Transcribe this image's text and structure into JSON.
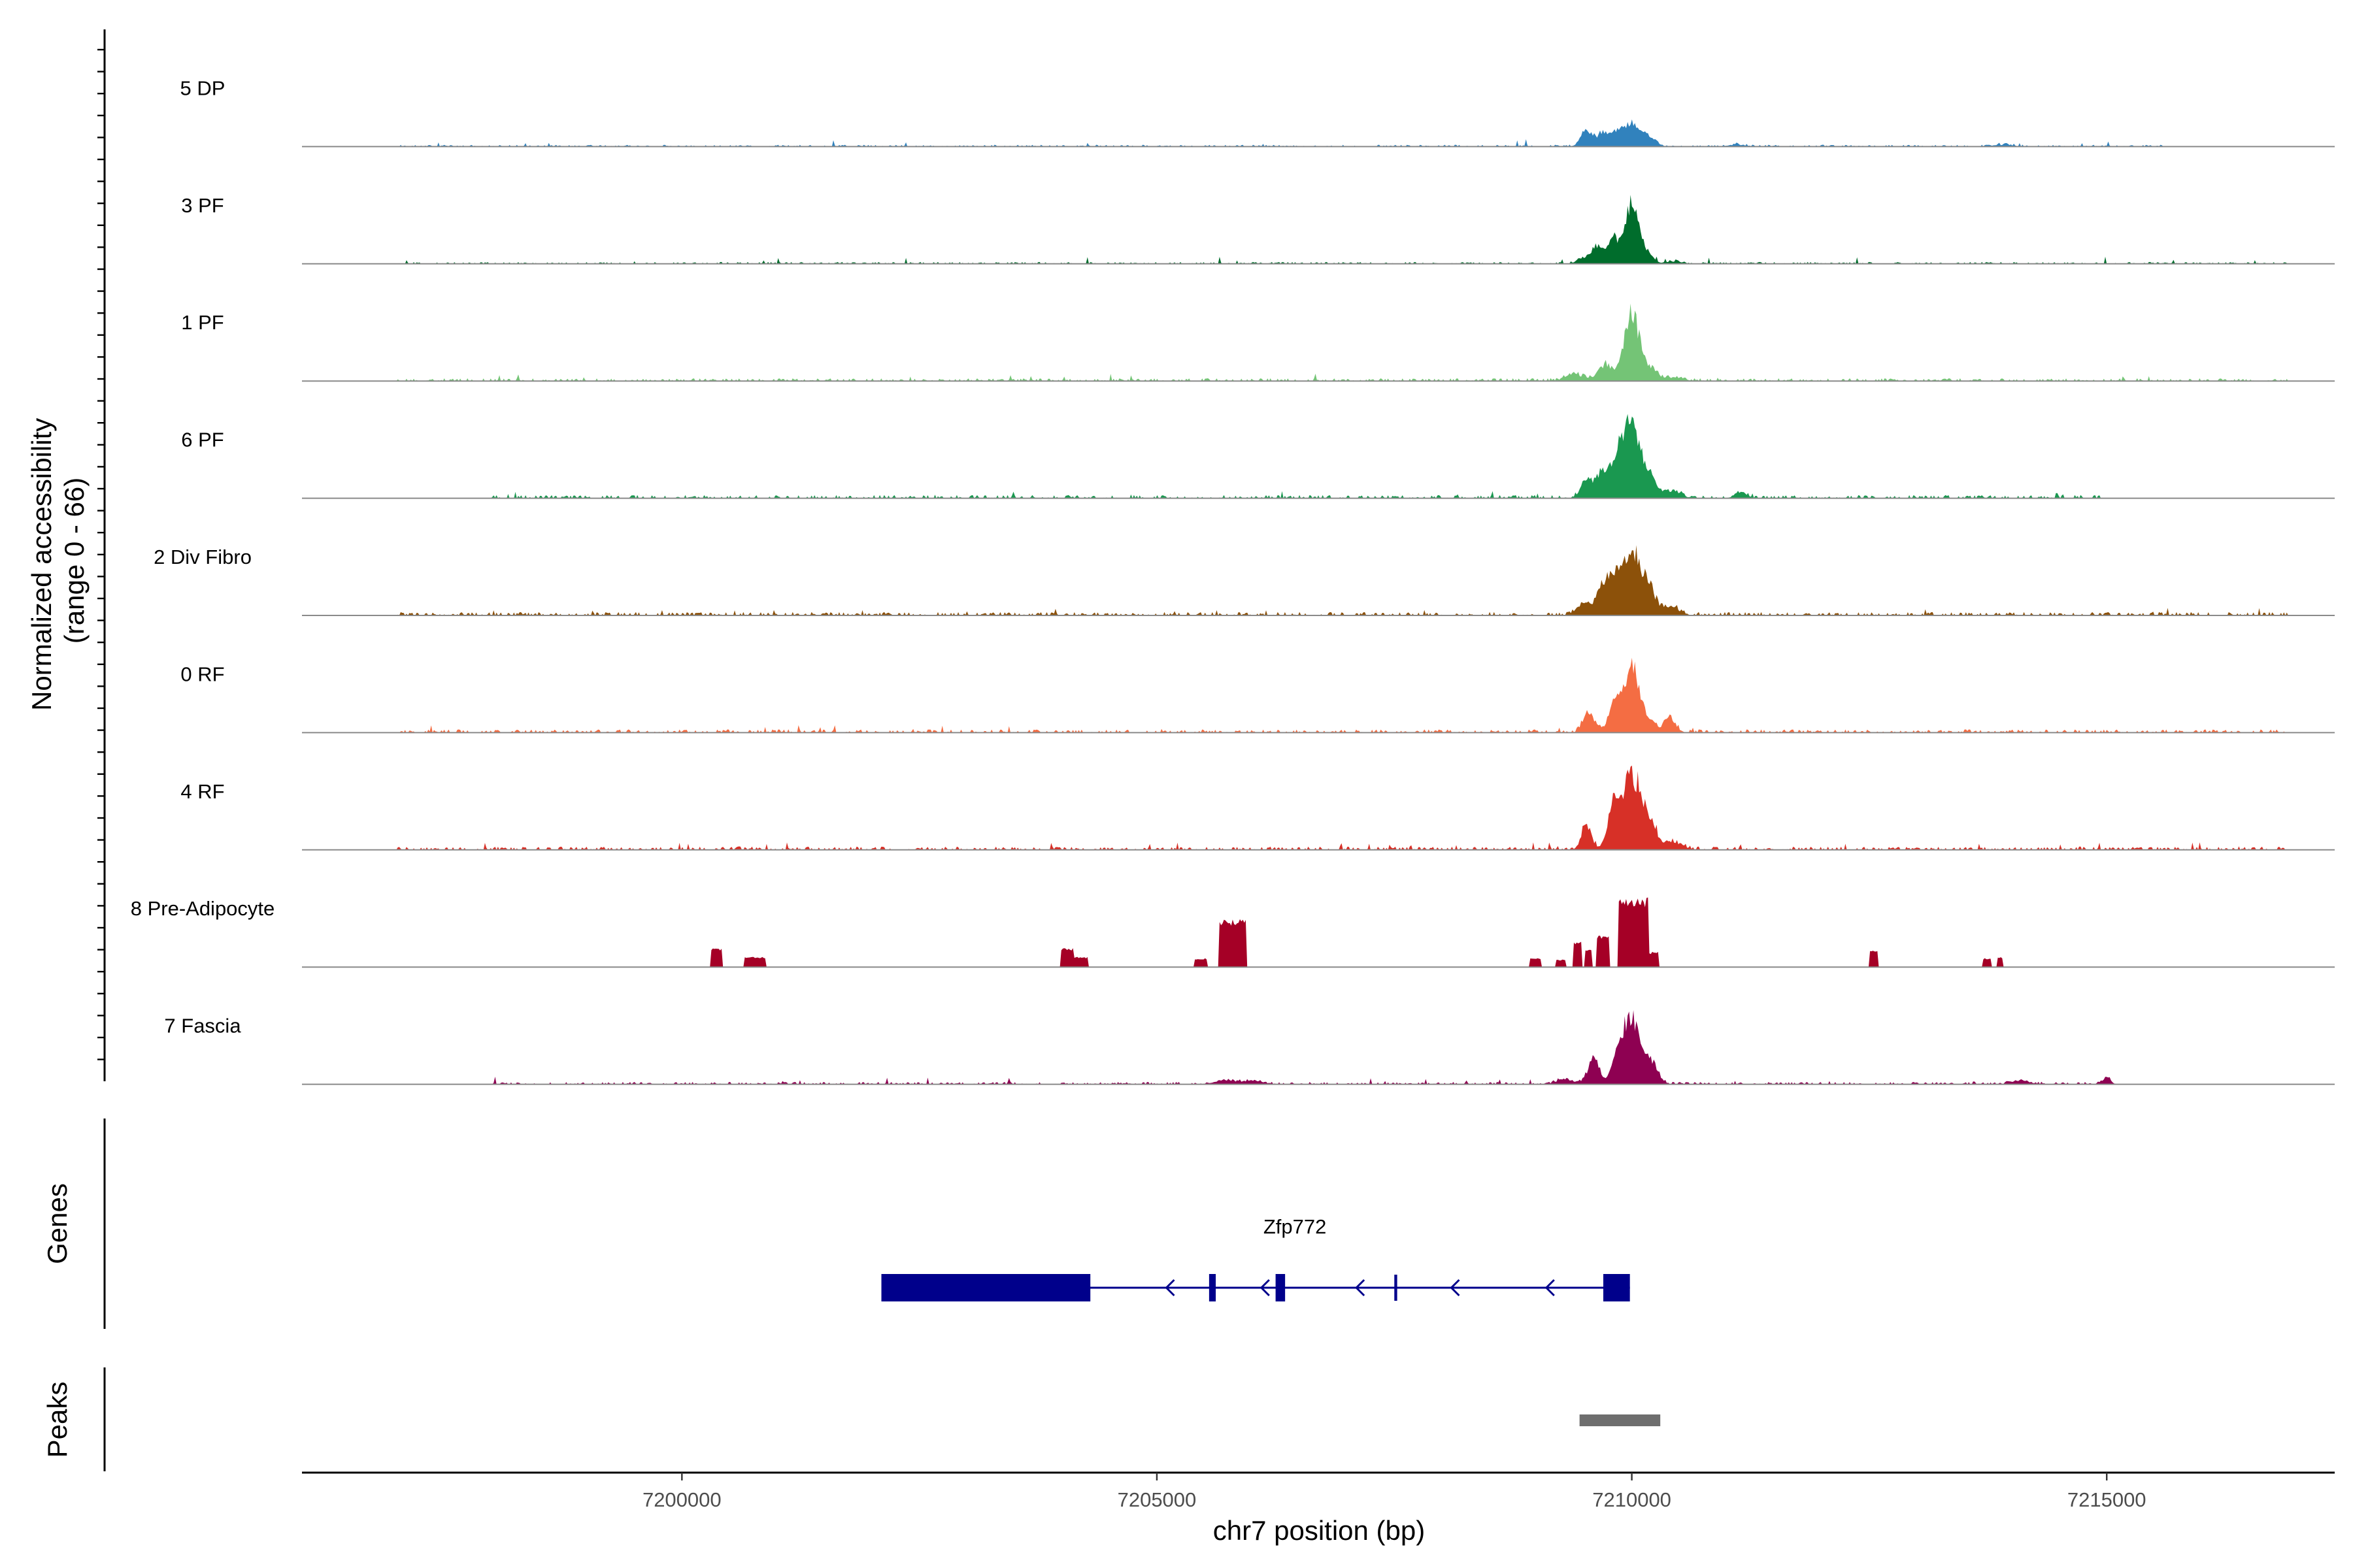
{
  "chart_data": {
    "type": "area",
    "title": "",
    "xlabel": "chr7 position (bp)",
    "ylabel": "Normalized accessibility\n(range 0 - 66)",
    "ylabel_lines": [
      "Normalized accessibility",
      "(range 0 - 66)"
    ],
    "xlim": [
      7196000,
      7217400
    ],
    "xticks": [
      7200000,
      7205000,
      7210000,
      7215000
    ],
    "xtick_labels": [
      "7200000",
      "7205000",
      "7210000",
      "7215000"
    ],
    "ylim": [
      0,
      66
    ],
    "grid": false,
    "series": [
      {
        "name": "5 DP",
        "color": "#3182bd",
        "seed": 11,
        "noise": 0.8,
        "peakScale": 0.62,
        "activeRange": [
          7197000,
          7215600
        ],
        "peaks": [
          [
            7209520,
            12,
            60
          ],
          [
            7209700,
            10,
            70
          ],
          [
            7209840,
            9,
            55
          ],
          [
            7210000,
            18,
            80
          ],
          [
            7210180,
            7,
            70
          ],
          [
            7211100,
            1.5,
            90
          ],
          [
            7213900,
            1.5,
            100
          ]
        ]
      },
      {
        "name": "3 PF",
        "color": "#006d2c",
        "seed": 23,
        "noise": 0.8,
        "peakScale": 0.62,
        "activeRange": [
          7197000,
          7216900
        ],
        "peaks": [
          [
            7209500,
            5,
            70
          ],
          [
            7209640,
            14,
            55
          ],
          [
            7209800,
            20,
            50
          ],
          [
            7210000,
            46,
            75
          ],
          [
            7210170,
            7,
            60
          ],
          [
            7210450,
            2,
            80
          ]
        ]
      },
      {
        "name": "1 PF",
        "color": "#74c476",
        "seed": 37,
        "noise": 1.2,
        "peakScale": 0.62,
        "activeRange": [
          7197000,
          7216900
        ],
        "peaks": [
          [
            7209400,
            5,
            100
          ],
          [
            7209720,
            13,
            70
          ],
          [
            7210000,
            52,
            80
          ],
          [
            7210200,
            9,
            70
          ],
          [
            7210450,
            3,
            90
          ]
        ]
      },
      {
        "name": "6 PF",
        "color": "#1a9850",
        "seed": 41,
        "noise": 1.4,
        "peakScale": 0.62,
        "activeRange": [
          7198000,
          7215000
        ],
        "peaks": [
          [
            7209520,
            14,
            60
          ],
          [
            7209700,
            22,
            70
          ],
          [
            7209860,
            30,
            60
          ],
          [
            7210000,
            56,
            80
          ],
          [
            7210170,
            17,
            70
          ],
          [
            7210400,
            6,
            100
          ],
          [
            7211150,
            5,
            60
          ]
        ]
      },
      {
        "name": "2 Div Fibro",
        "color": "#8c510a",
        "seed": 53,
        "noise": 1.5,
        "peakScale": 0.62,
        "activeRange": [
          7197000,
          7216900
        ],
        "peaks": [
          [
            7209500,
            9,
            80
          ],
          [
            7209720,
            27,
            70
          ],
          [
            7209850,
            22,
            60
          ],
          [
            7210000,
            52,
            80
          ],
          [
            7210170,
            22,
            70
          ],
          [
            7210400,
            7,
            90
          ]
        ]
      },
      {
        "name": "0 RF",
        "color": "#f46d43",
        "seed": 67,
        "noise": 1.4,
        "peakScale": 0.62,
        "activeRange": [
          7197000,
          7216900
        ],
        "peaks": [
          [
            7209550,
            16,
            60
          ],
          [
            7209820,
            24,
            60
          ],
          [
            7210000,
            52,
            75
          ],
          [
            7210180,
            10,
            60
          ],
          [
            7210400,
            12,
            60
          ]
        ]
      },
      {
        "name": "4 RF",
        "color": "#d73027",
        "seed": 71,
        "noise": 1.4,
        "peakScale": 0.62,
        "activeRange": [
          7197000,
          7216900
        ],
        "peaks": [
          [
            7209520,
            20,
            50
          ],
          [
            7209820,
            36,
            70
          ],
          [
            7210000,
            58,
            80
          ],
          [
            7210180,
            26,
            70
          ],
          [
            7210450,
            6,
            90
          ]
        ]
      },
      {
        "name": "8 Pre-Adipocyte",
        "color": "#a50026",
        "seed": 83,
        "noise": 0,
        "peakScale": 0.62,
        "activeRange": [
          7196000,
          7217400
        ],
        "blocks": [
          [
            7200300,
            7200420,
            15
          ],
          [
            7200650,
            7200880,
            8
          ],
          [
            7203980,
            7204120,
            15
          ],
          [
            7204130,
            7204280,
            8
          ],
          [
            7205400,
            7205530,
            7
          ],
          [
            7205650,
            7205950,
            38
          ],
          [
            7208930,
            7209050,
            7
          ],
          [
            7209200,
            7209300,
            6
          ],
          [
            7209380,
            7209480,
            20
          ],
          [
            7209500,
            7209580,
            14
          ],
          [
            7209620,
            7209760,
            25
          ],
          [
            7209860,
            7210180,
            55
          ],
          [
            7210180,
            7210280,
            12
          ],
          [
            7212500,
            7212600,
            13
          ],
          [
            7213700,
            7213780,
            7
          ],
          [
            7213840,
            7213900,
            8
          ]
        ]
      },
      {
        "name": "7 Fascia",
        "color": "#8e0152",
        "seed": 97,
        "noise": 1.0,
        "peakScale": 0.62,
        "activeRange": [
          7198000,
          7215100
        ],
        "peaks": [
          [
            7209600,
            20,
            60
          ],
          [
            7209850,
            22,
            60
          ],
          [
            7210000,
            55,
            75
          ],
          [
            7210200,
            18,
            70
          ],
          [
            7209300,
            4,
            90
          ],
          [
            7205700,
            3,
            100
          ],
          [
            7206000,
            3,
            100
          ],
          [
            7214100,
            3,
            90
          ],
          [
            7215000,
            5,
            40
          ]
        ]
      }
    ],
    "genes": [
      {
        "name": "Zfp772",
        "strand": "-",
        "start": 7202100,
        "end": 7209980,
        "exons": [
          [
            7202100,
            7204300,
            "thick"
          ],
          [
            7205550,
            7205620,
            "thick"
          ],
          [
            7206250,
            7206350,
            "thick"
          ],
          [
            7207500,
            7207530,
            "thin"
          ],
          [
            7209700,
            7209980,
            "thick"
          ]
        ],
        "arrows": [
          7205100,
          7206100,
          7207100,
          7208100,
          7209100
        ]
      }
    ],
    "peaks_track": [
      {
        "start": 7209450,
        "end": 7210300
      }
    ],
    "panel_titles": [
      "Genes",
      "Peaks"
    ]
  }
}
